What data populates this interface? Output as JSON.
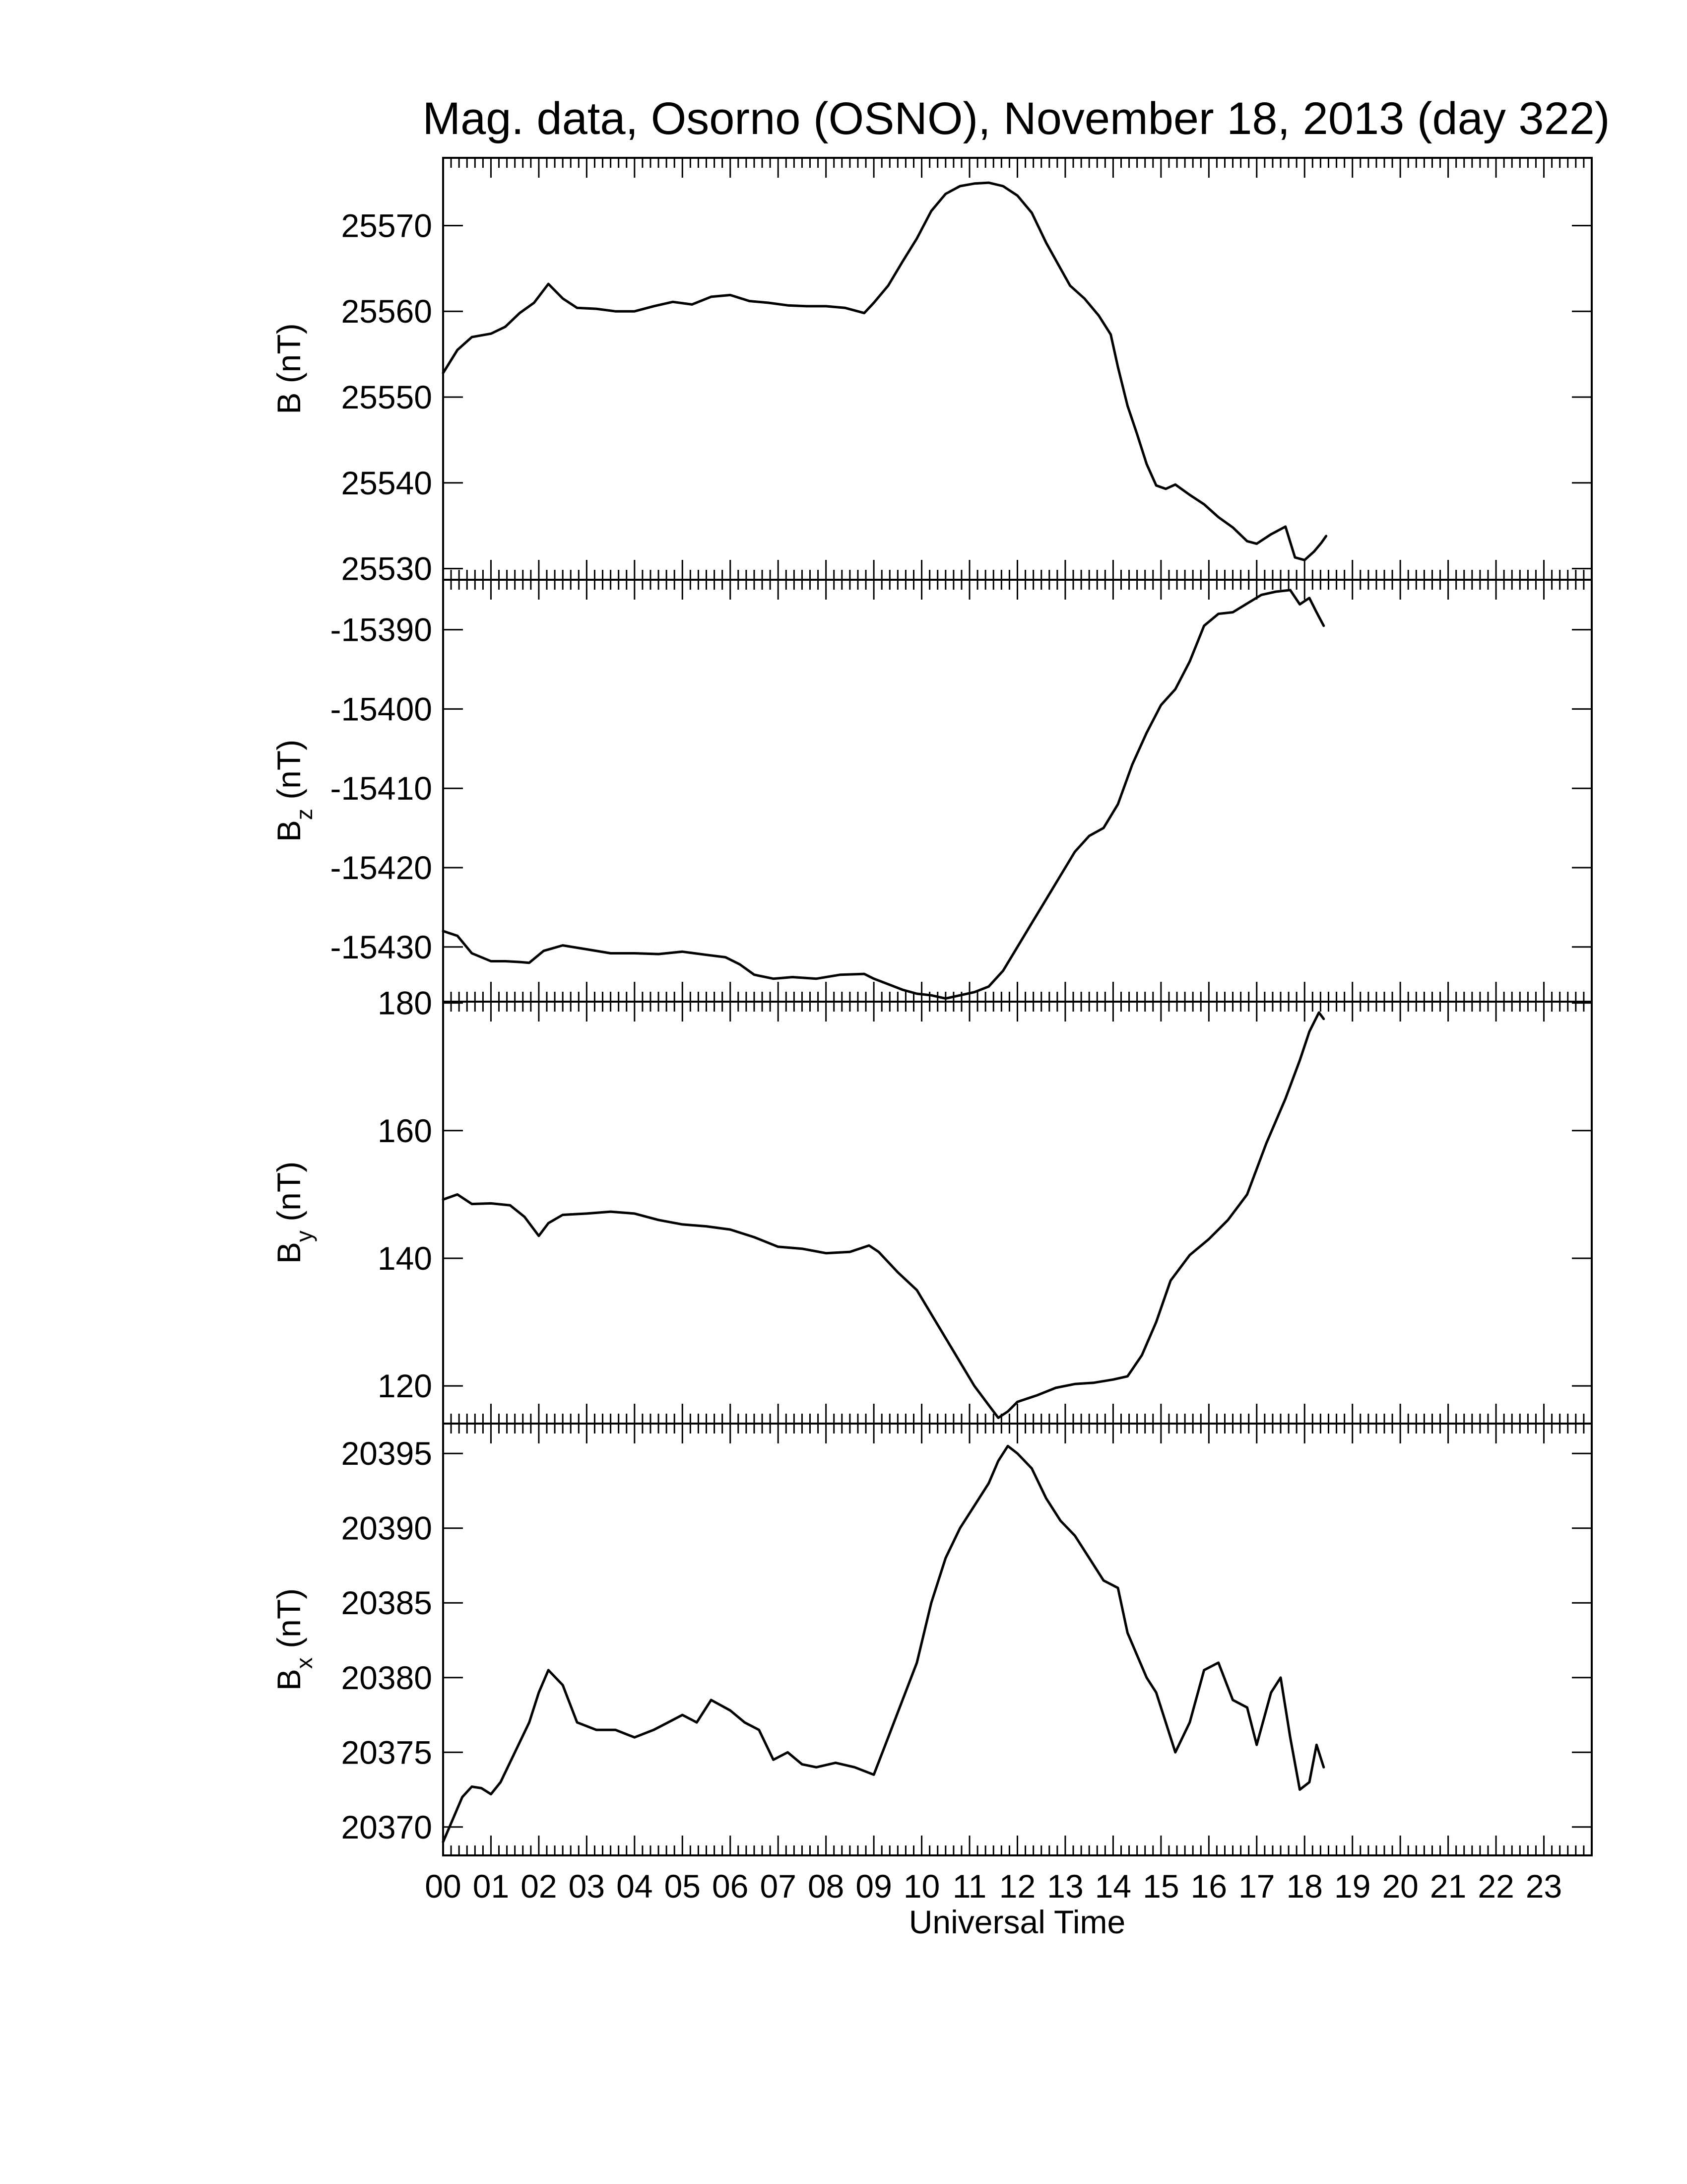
{
  "title": "Mag. data, Osorno (OSNO), November 18, 2013 (day 322)",
  "colors": {
    "line": "#000000",
    "frame": "#000000",
    "background": "#ffffff"
  },
  "xaxis": {
    "label": "Universal Time",
    "ticks": [
      "00",
      "01",
      "02",
      "03",
      "04",
      "05",
      "06",
      "07",
      "08",
      "09",
      "10",
      "11",
      "12",
      "13",
      "14",
      "15",
      "16",
      "17",
      "18",
      "19",
      "20",
      "21",
      "22",
      "23"
    ]
  },
  "chart_data": [
    {
      "type": "line",
      "ylabel": "B (nT)",
      "ylabel_main": "B",
      "ylabel_sub": "",
      "ylabel_unit": " (nT)",
      "x_unit": "hours UT",
      "xlim": [
        0,
        24
      ],
      "ylim": [
        25528.7,
        25577.9
      ],
      "yticks": [
        25530,
        25540,
        25550,
        25560,
        25570
      ],
      "yticklabels": [
        "25530",
        "25540",
        "25550",
        "25560",
        "25570"
      ],
      "series": [
        {
          "x": [
            0,
            0.3,
            0.6,
            1.0,
            1.3,
            1.6,
            1.9,
            2.2,
            2.5,
            2.8,
            3.2,
            3.6,
            4.0,
            4.4,
            4.8,
            5.2,
            5.6,
            6.0,
            6.4,
            6.8,
            7.2,
            7.6,
            8.0,
            8.4,
            8.8,
            9.0,
            9.3,
            9.6,
            9.9,
            10.2,
            10.5,
            10.8,
            11.1,
            11.4,
            11.7,
            12.0,
            12.3,
            12.6,
            12.9,
            13.1,
            13.4,
            13.7,
            13.95,
            14.1,
            14.3,
            14.5,
            14.7,
            14.9,
            15.1,
            15.3,
            15.6,
            15.9,
            16.2,
            16.5,
            16.8,
            17.0,
            17.3,
            17.6,
            17.8,
            18.0,
            18.2,
            18.35,
            18.45
          ],
          "y": [
            25552.8,
            25555.5,
            25557.0,
            25557.4,
            25558.2,
            25559.8,
            25561.0,
            25563.2,
            25561.5,
            25560.4,
            25560.3,
            25560.0,
            25560.0,
            25560.6,
            25561.1,
            25560.8,
            25561.7,
            25561.9,
            25561.2,
            25561.0,
            25560.7,
            25560.6,
            25560.6,
            25560.4,
            25559.8,
            25561.0,
            25563.0,
            25565.8,
            25568.5,
            25571.7,
            25573.7,
            25574.6,
            25574.9,
            25575.0,
            25574.6,
            25573.5,
            25571.5,
            25568.0,
            25565.0,
            25563.0,
            25561.5,
            25559.5,
            25557.3,
            25553.5,
            25549.0,
            25545.7,
            25542.2,
            25539.7,
            25539.3,
            25539.8,
            25538.6,
            25537.5,
            25536.0,
            25534.8,
            25533.2,
            25532.9,
            25534.0,
            25534.9,
            25531.3,
            25531.0,
            25532.0,
            25533.0,
            25533.8
          ]
        }
      ]
    },
    {
      "type": "line",
      "ylabel": "Bz (nT)",
      "ylabel_main": "B",
      "ylabel_sub": "z",
      "ylabel_unit": " (nT)",
      "x_unit": "hours UT",
      "xlim": [
        0,
        24
      ],
      "ylim": [
        -15436.9,
        -15383.7
      ],
      "yticks": [
        -15430,
        -15420,
        -15410,
        -15400,
        -15390
      ],
      "yticklabels": [
        "-15430",
        "-15420",
        "-15410",
        "-15400",
        "-15390"
      ],
      "series": [
        {
          "x": [
            0,
            0.3,
            0.6,
            1.0,
            1.3,
            1.6,
            1.8,
            2.1,
            2.5,
            3.0,
            3.5,
            4.0,
            4.5,
            5.0,
            5.5,
            5.9,
            6.2,
            6.5,
            6.9,
            7.3,
            7.8,
            8.3,
            8.8,
            9.0,
            9.3,
            9.6,
            9.9,
            10.2,
            10.5,
            10.8,
            11.1,
            11.4,
            11.7,
            12.0,
            12.3,
            12.6,
            12.9,
            13.2,
            13.5,
            13.8,
            14.1,
            14.4,
            14.7,
            15.0,
            15.3,
            15.6,
            15.9,
            16.2,
            16.5,
            16.8,
            17.1,
            17.4,
            17.7,
            17.9,
            18.1,
            18.25,
            18.4
          ],
          "y": [
            -15428.0,
            -15428.6,
            -15430.8,
            -15431.8,
            -15431.8,
            -15431.9,
            -15432.0,
            -15430.5,
            -15429.8,
            -15430.3,
            -15430.8,
            -15430.8,
            -15430.9,
            -15430.6,
            -15431.0,
            -15431.3,
            -15432.2,
            -15433.5,
            -15434.0,
            -15433.8,
            -15434.0,
            -15433.5,
            -15433.4,
            -15434.0,
            -15434.7,
            -15435.4,
            -15435.9,
            -15436.1,
            -15436.5,
            -15436.1,
            -15435.7,
            -15435.0,
            -15433.0,
            -15430.0,
            -15427.0,
            -15424.0,
            -15421.0,
            -15418.0,
            -15416.0,
            -15415.0,
            -15412.0,
            -15407.0,
            -15403.0,
            -15399.5,
            -15397.5,
            -15394.0,
            -15389.5,
            -15388.0,
            -15387.8,
            -15386.7,
            -15385.6,
            -15385.2,
            -15385.0,
            -15386.8,
            -15386.0,
            -15387.8,
            -15389.5
          ]
        }
      ]
    },
    {
      "type": "line",
      "ylabel": "By (nT)",
      "ylabel_main": "B",
      "ylabel_sub": "y",
      "ylabel_unit": " (nT)",
      "x_unit": "hours UT",
      "xlim": [
        0,
        24
      ],
      "ylim": [
        114.1,
        180.2
      ],
      "yticks": [
        120,
        140,
        160,
        180
      ],
      "yticklabels": [
        "120",
        "140",
        "160",
        "180"
      ],
      "series": [
        {
          "x": [
            0,
            0.3,
            0.6,
            1.0,
            1.4,
            1.7,
            2.0,
            2.2,
            2.5,
            3.0,
            3.5,
            4.0,
            4.5,
            5.0,
            5.5,
            6.0,
            6.5,
            7.0,
            7.5,
            8.0,
            8.5,
            8.9,
            9.1,
            9.5,
            9.9,
            10.3,
            10.7,
            11.1,
            11.4,
            11.6,
            11.8,
            12.0,
            12.4,
            12.8,
            13.2,
            13.6,
            14.0,
            14.3,
            14.6,
            14.9,
            15.2,
            15.6,
            16.0,
            16.4,
            16.8,
            17.2,
            17.6,
            17.9,
            18.1,
            18.3,
            18.4
          ],
          "y": [
            149.2,
            150.0,
            148.5,
            148.6,
            148.3,
            146.5,
            143.5,
            145.5,
            146.8,
            147.0,
            147.3,
            147.0,
            146.0,
            145.3,
            145.0,
            144.5,
            143.3,
            141.8,
            141.5,
            140.8,
            141.0,
            142.0,
            141.0,
            137.8,
            135.0,
            130.0,
            125.0,
            120.0,
            117.0,
            115.0,
            116.0,
            117.5,
            118.5,
            119.7,
            120.3,
            120.5,
            121.0,
            121.5,
            124.8,
            130.0,
            136.5,
            140.5,
            143.0,
            146.0,
            150.0,
            158.0,
            165.0,
            171.0,
            175.5,
            178.5,
            177.5
          ]
        }
      ]
    },
    {
      "type": "line",
      "ylabel": "Bx (nT)",
      "ylabel_main": "B",
      "ylabel_sub": "x",
      "ylabel_unit": " (nT)",
      "x_unit": "hours UT",
      "xlim": [
        0,
        24
      ],
      "ylim": [
        20368.1,
        20397.0
      ],
      "yticks": [
        20370,
        20375,
        20380,
        20385,
        20390,
        20395
      ],
      "yticklabels": [
        "20370",
        "20375",
        "20380",
        "20385",
        "20390",
        "20395"
      ],
      "series": [
        {
          "x": [
            0,
            0.2,
            0.4,
            0.6,
            0.8,
            1.0,
            1.2,
            1.5,
            1.8,
            2.0,
            2.2,
            2.5,
            2.8,
            3.2,
            3.6,
            4.0,
            4.4,
            4.7,
            5.0,
            5.3,
            5.6,
            6.0,
            6.3,
            6.6,
            6.9,
            7.2,
            7.5,
            7.8,
            8.2,
            8.6,
            9.0,
            9.3,
            9.6,
            9.9,
            10.2,
            10.5,
            10.8,
            11.1,
            11.4,
            11.6,
            11.8,
            12.0,
            12.3,
            12.6,
            12.9,
            13.2,
            13.5,
            13.8,
            14.1,
            14.3,
            14.5,
            14.7,
            14.9,
            15.1,
            15.3,
            15.6,
            15.9,
            16.2,
            16.5,
            16.8,
            17.0,
            17.3,
            17.5,
            17.7,
            17.9,
            18.1,
            18.25,
            18.4
          ],
          "y": [
            20369.0,
            20370.5,
            20372.0,
            20372.7,
            20372.6,
            20372.2,
            20373.0,
            20375.0,
            20377.0,
            20379.0,
            20380.5,
            20379.5,
            20377.0,
            20376.5,
            20376.5,
            20376.0,
            20376.5,
            20377.0,
            20377.5,
            20377.0,
            20378.5,
            20377.8,
            20377.0,
            20376.5,
            20374.5,
            20375.0,
            20374.2,
            20374.0,
            20374.3,
            20374.0,
            20373.5,
            20376.0,
            20378.5,
            20381.0,
            20385.0,
            20388.0,
            20390.0,
            20391.5,
            20393.0,
            20394.5,
            20395.5,
            20395.0,
            20394.0,
            20392.0,
            20390.5,
            20389.5,
            20388.0,
            20386.5,
            20386.0,
            20383.0,
            20381.5,
            20380.0,
            20379.0,
            20377.0,
            20375.0,
            20377.0,
            20380.5,
            20381.0,
            20378.5,
            20378.0,
            20375.5,
            20379.0,
            20380.0,
            20376.0,
            20372.5,
            20373.0,
            20375.5,
            20374.0
          ]
        }
      ]
    }
  ]
}
